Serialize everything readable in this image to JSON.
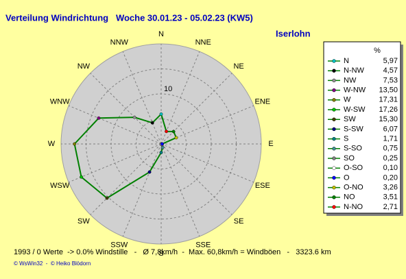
{
  "chart_data": {
    "type": "radar",
    "title": "Verteilung Windrichtung   Woche 30.01.23 - 05.02.23 (KW5)",
    "location": "Iserlohn",
    "directions": [
      "N",
      "NNE",
      "NE",
      "ENE",
      "E",
      "ESE",
      "SE",
      "SSE",
      "S",
      "SSW",
      "SW",
      "WSW",
      "W",
      "WNW",
      "NW",
      "NNW"
    ],
    "legend_header": "%",
    "categories": [
      "N",
      "N-NW",
      "NW",
      "W-NW",
      "W",
      "W-SW",
      "SW",
      "S-SW",
      "S",
      "S-SO",
      "SO",
      "O-SO",
      "O",
      "O-NO",
      "NO",
      "N-NO"
    ],
    "values": [
      5.97,
      4.57,
      7.53,
      13.5,
      17.31,
      17.26,
      15.3,
      6.07,
      1.71,
      0.75,
      0.25,
      0.1,
      0.2,
      3.26,
      3.51,
      2.71
    ],
    "value_labels": [
      "5,97",
      "4,57",
      "7,53",
      "13,50",
      "17,31",
      "17,26",
      "15,30",
      "6,07",
      "1,71",
      "0,75",
      "0,25",
      "0,10",
      "0,20",
      "3,26",
      "3,51",
      "2,71"
    ],
    "marker_colors": [
      "#00c0c0",
      "#000000",
      "#909090",
      "#800080",
      "#808000",
      "#00c000",
      "#404000",
      "#000080",
      "#008080",
      "#409090",
      "#808080",
      "#ffffff",
      "#0000ff",
      "#c0c000",
      "#008000",
      "#ff0000"
    ],
    "line_color": "#008000",
    "rlim": [
      0,
      20
    ],
    "rticks": [
      {
        "value": 5,
        "label": null
      },
      10,
      {
        "value": 15,
        "label": null
      }
    ],
    "footer": "1993 / 0 Werte  -> 0.0% Windstille   -   Ø 7,8km/h  -  Max. 60,8km/h = Windböen   -   3323.6 km",
    "copyright": "© WsWin32  -  © Heiko Blödorn"
  }
}
